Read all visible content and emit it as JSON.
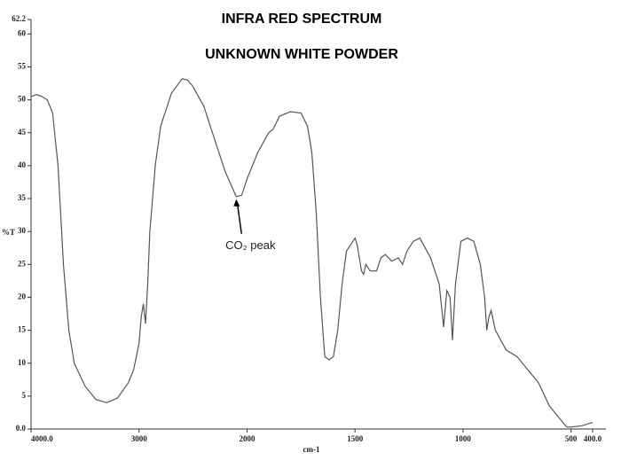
{
  "chart_data": {
    "type": "line",
    "title": "INFRA RED SPECTRUM",
    "subtitle": "UNKNOWN WHITE POWDER",
    "y_label": "%T",
    "x_label": "cm-1",
    "annotation": {
      "text": "CO₂ peak",
      "x": 2100,
      "y": 35.3
    },
    "xlim": [
      4000,
      400
    ],
    "x_scale_change": 2000,
    "xticks": [
      {
        "value": 4000,
        "label": "4000.0"
      },
      3000,
      2000,
      1500,
      1000,
      500,
      {
        "value": 400,
        "label": "400.0"
      }
    ],
    "ylim": [
      0,
      62.2
    ],
    "yticks": [
      {
        "value": 0,
        "label": "0.0"
      },
      5,
      10,
      15,
      20,
      25,
      30,
      35,
      40,
      45,
      50,
      55,
      60,
      62.2
    ],
    "series": [
      {
        "color": "#555555",
        "x": [
          4000,
          3950,
          3900,
          3850,
          3800,
          3750,
          3700,
          3650,
          3600,
          3500,
          3400,
          3300,
          3200,
          3100,
          3050,
          3000,
          2980,
          2960,
          2940,
          2920,
          2900,
          2850,
          2800,
          2700,
          2600,
          2550,
          2500,
          2400,
          2300,
          2200,
          2100,
          2050,
          2000,
          1950,
          1900,
          1880,
          1850,
          1800,
          1750,
          1720,
          1700,
          1680,
          1660,
          1640,
          1620,
          1600,
          1580,
          1560,
          1540,
          1500,
          1490,
          1470,
          1460,
          1450,
          1430,
          1400,
          1380,
          1360,
          1330,
          1300,
          1280,
          1260,
          1230,
          1200,
          1150,
          1110,
          1090,
          1075,
          1060,
          1049,
          1035,
          1010,
          980,
          950,
          920,
          900,
          890,
          880,
          870,
          850,
          800,
          750,
          700,
          650,
          600,
          550,
          520,
          500,
          450,
          400
        ],
        "values": [
          50.5,
          50.8,
          50.5,
          50,
          48,
          40,
          25,
          15,
          10,
          6.5,
          4.5,
          4,
          4.7,
          7,
          9,
          13,
          17,
          19,
          16,
          22,
          30,
          40,
          46,
          51,
          53.2,
          53,
          52,
          49,
          44,
          39,
          35.3,
          35.5,
          38,
          42,
          45,
          45.5,
          47.5,
          48.2,
          48,
          46,
          42,
          33,
          20,
          11,
          10.5,
          11,
          15,
          22,
          27,
          29,
          28,
          24,
          23.5,
          25,
          24,
          24,
          26,
          26.5,
          25.5,
          26,
          25,
          27,
          28.5,
          29,
          26,
          22,
          15.5,
          21,
          20,
          13.5,
          22,
          28.5,
          29,
          28.5,
          25,
          20,
          15,
          17,
          18,
          15,
          12,
          11,
          9,
          7,
          3.5,
          1.5,
          0.3,
          0.3,
          0.5,
          1
        ]
      }
    ]
  }
}
